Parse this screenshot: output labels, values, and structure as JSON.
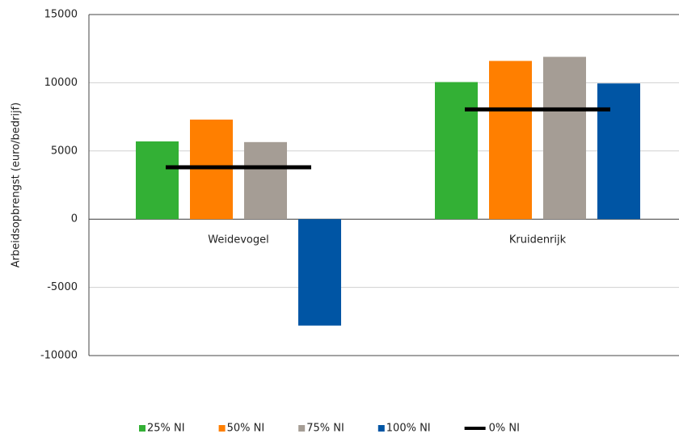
{
  "chart_data": {
    "type": "bar",
    "y_label": "Arbeidsopbrengst (euro/bedrijf)",
    "categories": [
      "Weidevogel",
      "Kruidenrijk"
    ],
    "series": [
      {
        "name": "25% NI",
        "color": "#33b035",
        "values": [
          5700,
          10050
        ]
      },
      {
        "name": "50% NI",
        "color": "#ff7f00",
        "values": [
          7300,
          11600
        ]
      },
      {
        "name": "75% NI",
        "color": "#a59d95",
        "values": [
          5650,
          11900
        ]
      },
      {
        "name": "100% NI",
        "color": "#0055a4",
        "values": [
          -7800,
          9950
        ]
      },
      {
        "name": "0% NI",
        "color": "#000000",
        "type": "line",
        "values": [
          3800,
          8050
        ]
      }
    ],
    "ylim": [
      -10000,
      15000
    ],
    "yticks": [
      -10000,
      -5000,
      0,
      5000,
      10000,
      15000
    ],
    "grid": true,
    "legend": "bottom"
  }
}
